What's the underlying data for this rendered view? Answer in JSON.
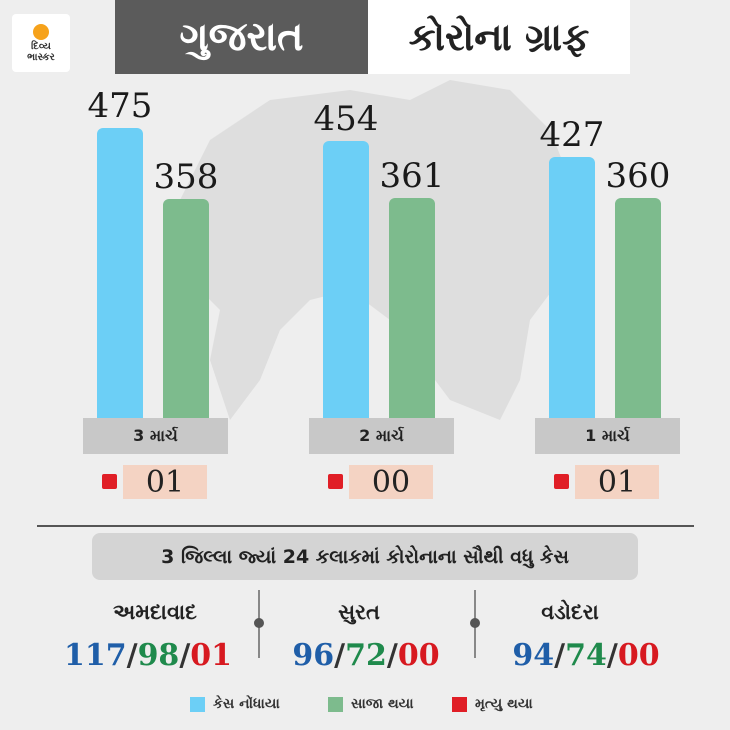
{
  "logo": {
    "line1": "દિવ્ય",
    "line2": "ભાસ્કર"
  },
  "header": {
    "state": "ગુજરાત",
    "title": "કોરોના ગ્રાફ"
  },
  "colors": {
    "cases": "#6ccff6",
    "recovered": "#7dbb8d",
    "deaths": "#e01e26",
    "blue_text": "#1f5ea8",
    "green_text": "#1f8a4c",
    "red_text": "#d71920"
  },
  "chart_data": {
    "type": "bar",
    "categories": [
      "3 માર્ચ",
      "2 માર્ચ",
      "1 માર્ચ"
    ],
    "series": [
      {
        "name": "કેસ નોંધાયા",
        "values": [
          475,
          454,
          427
        ]
      },
      {
        "name": "સાજા થયા",
        "values": [
          358,
          361,
          360
        ]
      },
      {
        "name": "મૃત્યુ થયા",
        "values": [
          1,
          0,
          1
        ]
      }
    ],
    "value_labels": {
      "cases": [
        "475",
        "454",
        "427"
      ],
      "recovered": [
        "358",
        "361",
        "360"
      ],
      "deaths": [
        "01",
        "00",
        "01"
      ]
    },
    "title": "",
    "xlabel": "",
    "ylabel": "",
    "ylim": [
      0,
      500
    ],
    "legend_position": "bottom"
  },
  "districts": {
    "subtitle": "3 જિલ્લા જ્યાં 24 કલાકમાં કોરોનાના સૌથી વધુ કેસ",
    "items": [
      {
        "name": "અમદાવાદ",
        "cases": "117",
        "recovered": "98",
        "deaths": "01"
      },
      {
        "name": "સુરત",
        "cases": "96",
        "recovered": "72",
        "deaths": "00"
      },
      {
        "name": "વડોદરા",
        "cases": "94",
        "recovered": "74",
        "deaths": "00"
      }
    ]
  },
  "legend": {
    "cases": "કેસ નોંધાયા",
    "recovered": "સાજા થયા",
    "deaths": "મૃત્યુ થયા"
  }
}
